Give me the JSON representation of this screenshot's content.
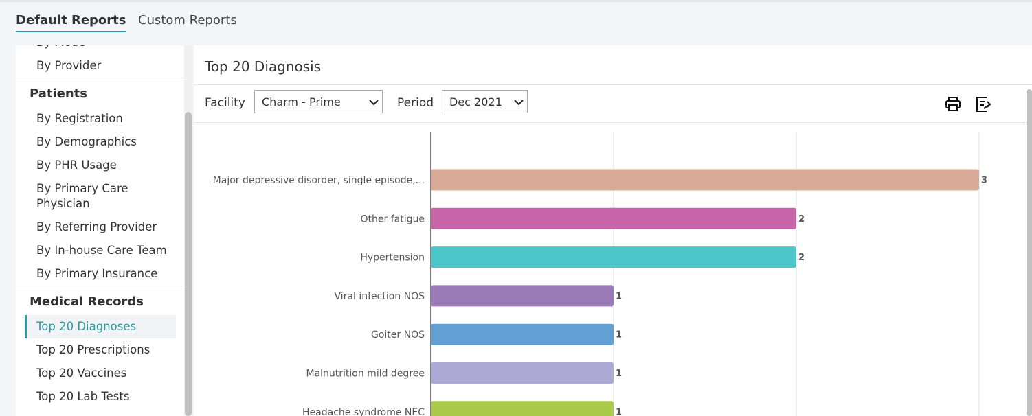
{
  "tabs": [
    "Default Reports",
    "Custom Reports"
  ],
  "sidebar": {
    "top_items": [
      "By Mode",
      "By Provider"
    ],
    "sections": [
      {
        "heading": "Patients",
        "items": [
          "By Registration",
          "By Demographics",
          "By PHR Usage",
          "By Primary Care Physician",
          "By Referring Provider",
          "By In-house Care Team",
          "By Primary Insurance"
        ]
      },
      {
        "heading": "Medical Records",
        "items": [
          "Top 20 Diagnoses",
          "Top 20 Prescriptions",
          "Top 20 Vaccines",
          "Top 20 Lab Tests"
        ]
      }
    ]
  },
  "panel": {
    "title": "Top 20 Diagnosis",
    "filters": [
      {
        "label": "Facility",
        "value": "Charm - Prime"
      },
      {
        "label": "Period",
        "value": "Dec 2021"
      }
    ]
  },
  "chart_data": {
    "type": "hbar",
    "categories": [
      "Major depressive disorder, single episode,...",
      "Other fatigue",
      "Hypertension",
      "Viral infection NOS",
      "Goiter NOS",
      "Malnutrition mild degree",
      "Headache syndrome NEC"
    ],
    "values": [
      3,
      2,
      2,
      1,
      1,
      1,
      1
    ],
    "colors": [
      "#d9a998",
      "#c666a9",
      "#4cc6c9",
      "#9b7bb7",
      "#629fd3",
      "#acaad4",
      "#a9c94b"
    ],
    "xlim": [
      0,
      3
    ],
    "grid": true
  }
}
